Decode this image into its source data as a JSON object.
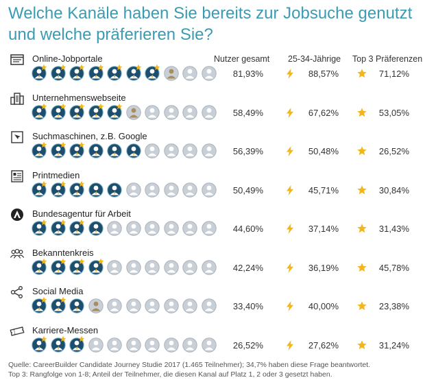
{
  "title": "Welche Kanäle haben Sie bereits zur Jobsuche genutzt und welche präferieren Sie?",
  "column_headers": {
    "total": "Nutzer gesamt",
    "age": "25-34-Jährige",
    "top3": "Top 3 Präferenzen"
  },
  "colors": {
    "title": "#3a9bb2",
    "person_dark_bg": "#1d4e6e",
    "person_light_bg": "#c9cfd6",
    "star": "#f2b61a",
    "bolt": "#f2b61a"
  },
  "chart_data": {
    "type": "table",
    "title": "Welche Kanäle haben Sie bereits zur Jobsuche genutzt und welche präferieren Sie?",
    "columns": [
      "Nutzer gesamt",
      "25-34-Jährige",
      "Top 3 Präferenzen"
    ],
    "rows": [
      {
        "icon": "browser-window-icon",
        "label": "Online-Jobportale",
        "total": "81,93%",
        "age": "88,57%",
        "top3": "71,12%",
        "persons_filled": 7,
        "persons_starred": 7,
        "persons_partial": 1
      },
      {
        "icon": "building-icon",
        "label": "Unternehmenswebseite",
        "total": "58,49%",
        "age": "67,62%",
        "top3": "53,05%",
        "persons_filled": 5,
        "persons_starred": 5,
        "persons_partial": 1
      },
      {
        "icon": "search-engine-icon",
        "label": "Suchmaschinen, z.B. Google",
        "total": "56,39%",
        "age": "50,48%",
        "top3": "26,52%",
        "persons_filled": 6,
        "persons_starred": 3,
        "persons_partial": 0
      },
      {
        "icon": "newspaper-icon",
        "label": "Printmedien",
        "total": "50,49%",
        "age": "45,71%",
        "top3": "30,84%",
        "persons_filled": 5,
        "persons_starred": 3,
        "persons_partial": 0
      },
      {
        "icon": "agency-logo-icon",
        "label": "Bundesagentur für Arbeit",
        "total": "44,60%",
        "age": "37,14%",
        "top3": "31,43%",
        "persons_filled": 4,
        "persons_starred": 3,
        "persons_partial": 0
      },
      {
        "icon": "people-group-icon",
        "label": "Bekanntenkreis",
        "total": "42,24%",
        "age": "36,19%",
        "top3": "45,78%",
        "persons_filled": 4,
        "persons_starred": 4,
        "persons_partial": 0
      },
      {
        "icon": "network-icon",
        "label": "Social Media",
        "total": "33,40%",
        "age": "40,00%",
        "top3": "23,38%",
        "persons_filled": 3,
        "persons_starred": 2,
        "persons_partial": 1
      },
      {
        "icon": "ticket-icon",
        "label": "Karriere-Messen",
        "total": "26,52%",
        "age": "27,62%",
        "top3": "31,24%",
        "persons_filled": 3,
        "persons_starred": 3,
        "persons_partial": 0
      }
    ],
    "persons_per_row": 10
  },
  "source_line1": "Quelle: CareerBuilder Candidate Journey Studie 2017 (1.465 Teilnehmer); 34,7% haben diese Frage beantwortet.",
  "source_line2": "Top 3: Rangfolge von 1-8; Anteil der Teilnehmer, die diesen Kanal auf Platz 1, 2 oder 3 gesetzt haben."
}
